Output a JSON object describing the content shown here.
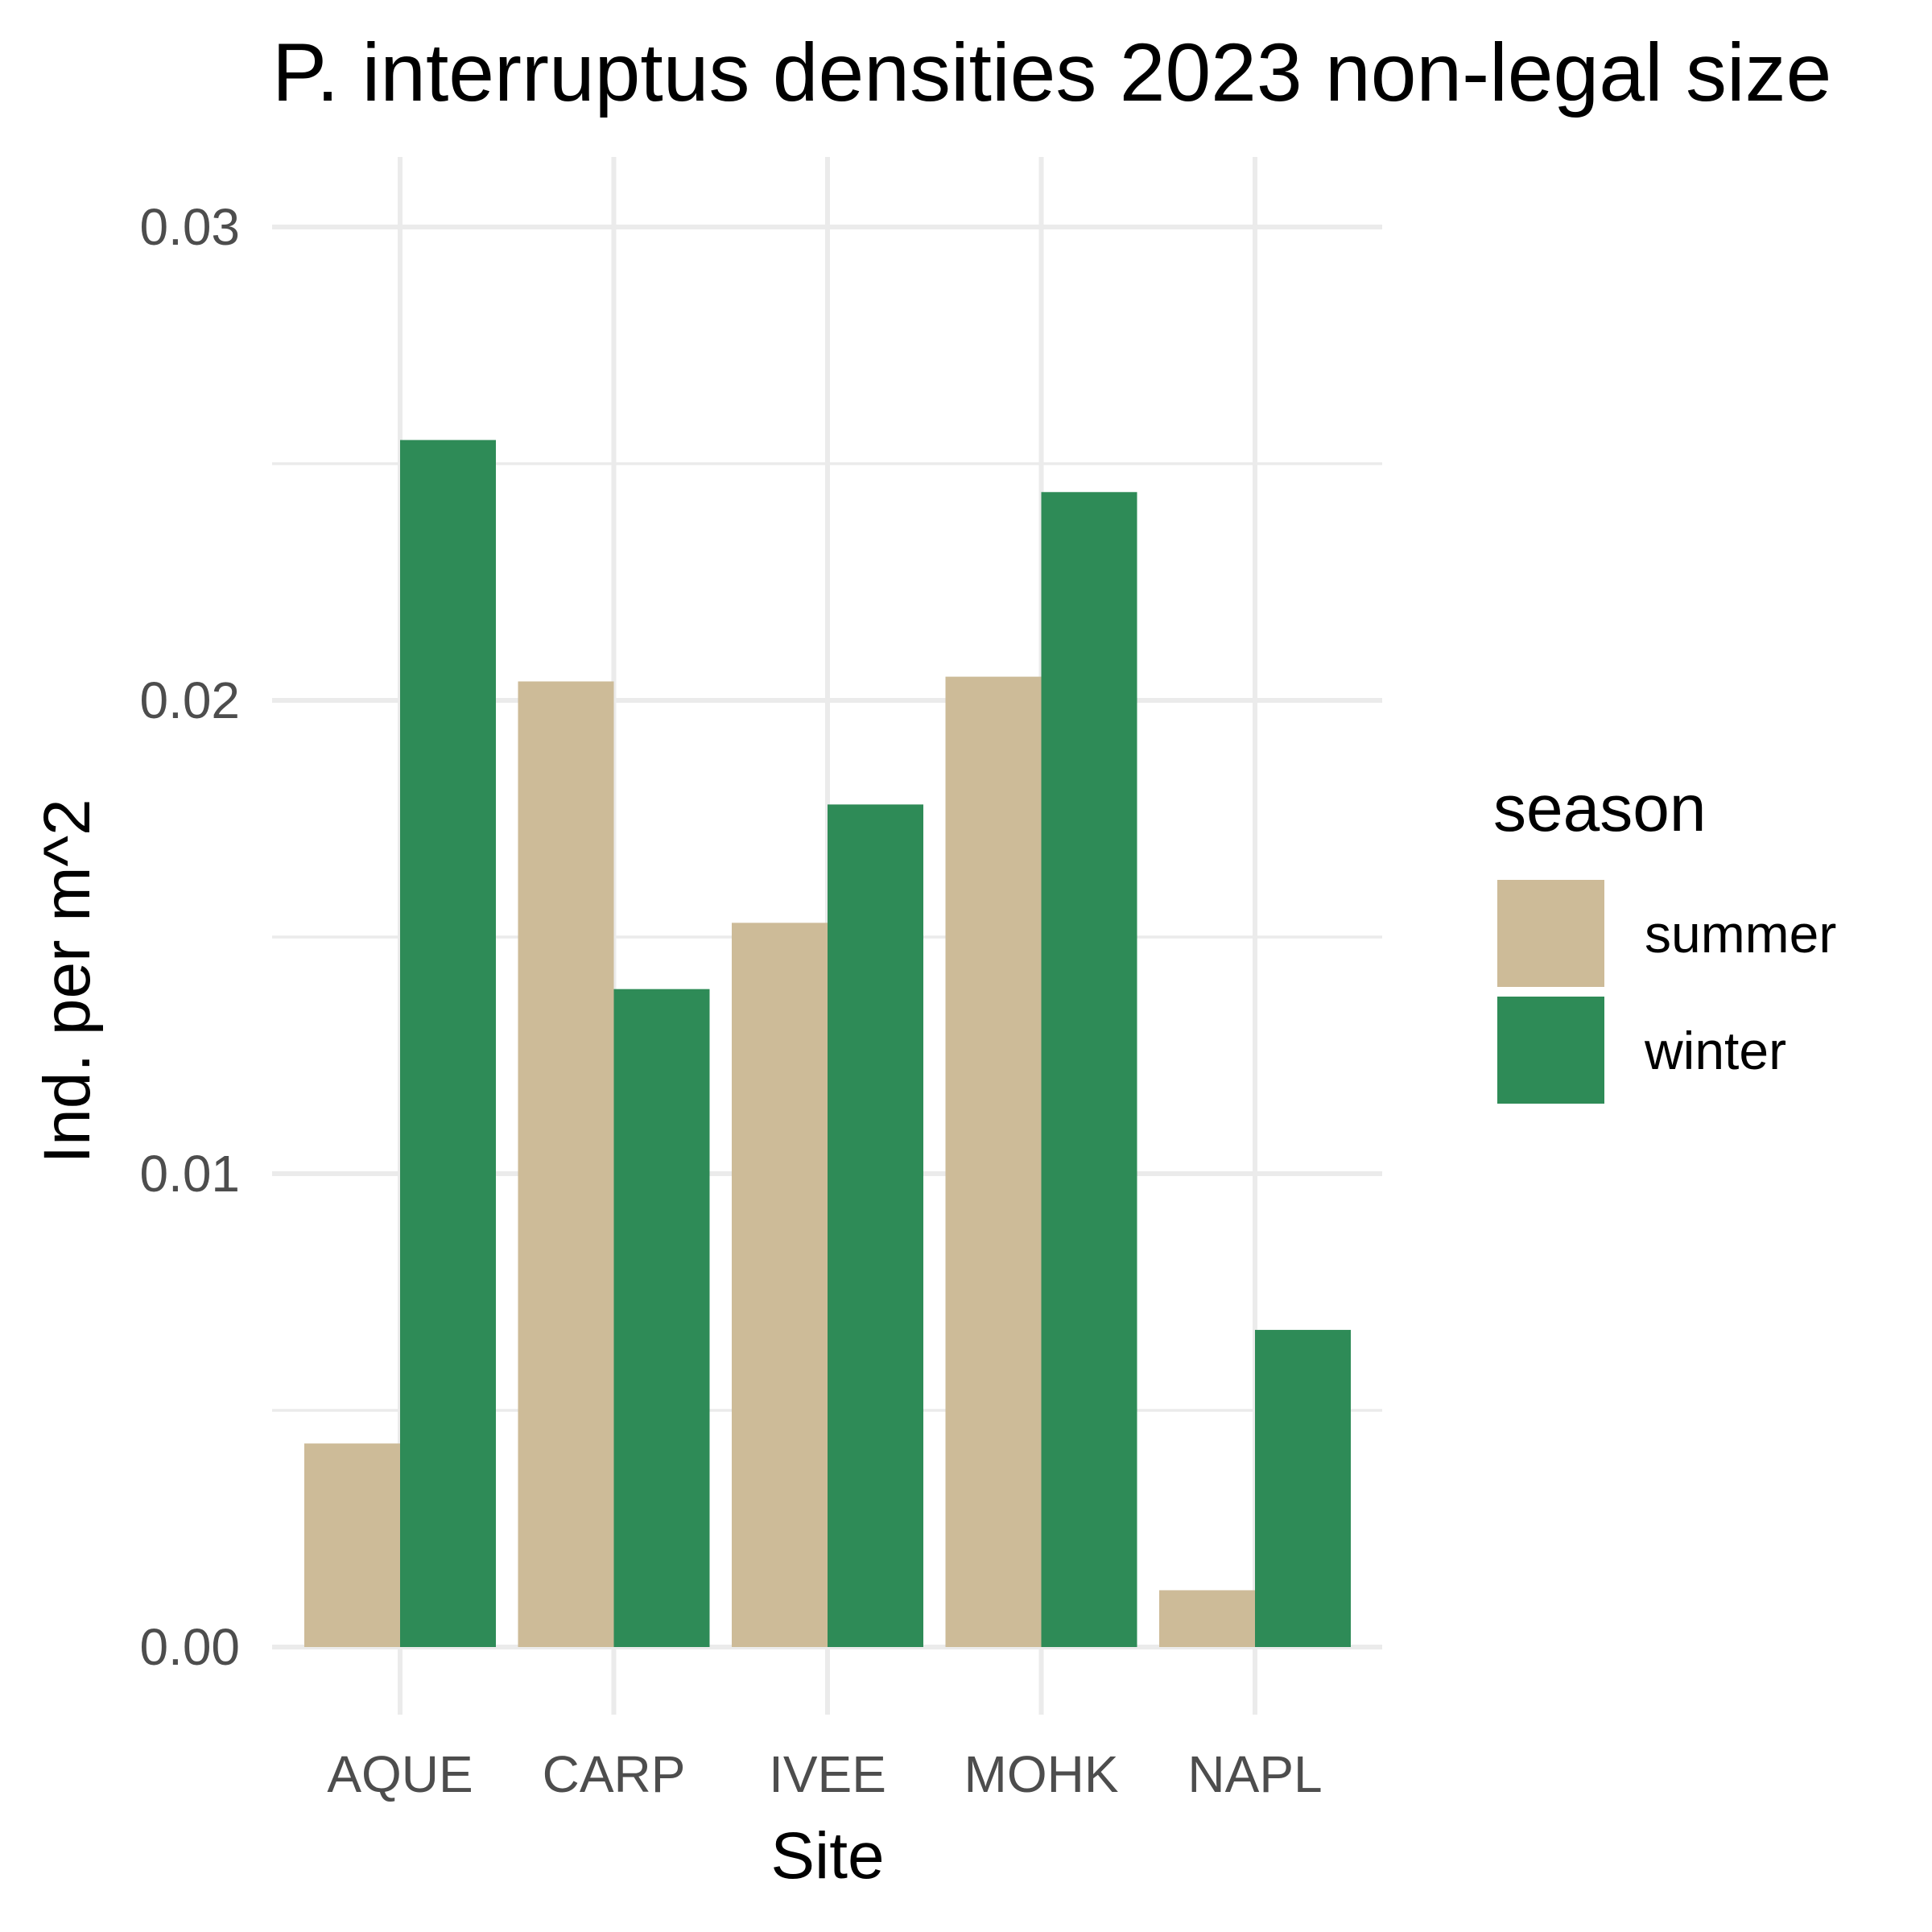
{
  "chart_data": {
    "type": "bar",
    "title": "P. interruptus densities 2023 non-legal size",
    "xlabel": "Site",
    "ylabel": "Ind. per m^2",
    "categories": [
      "AQUE",
      "CARP",
      "IVEE",
      "MOHK",
      "NAPL"
    ],
    "series": [
      {
        "name": "summer",
        "color": "#CDBB98",
        "values": [
          0.0043,
          0.0204,
          0.0153,
          0.0205,
          0.0012
        ]
      },
      {
        "name": "winter",
        "color": "#2E8B57",
        "values": [
          0.0255,
          0.0139,
          0.0178,
          0.0244,
          0.0067
        ]
      }
    ],
    "ylim": [
      0,
      0.03
    ],
    "yticks": [
      "0.00",
      "0.01",
      "0.02",
      "0.03"
    ],
    "ytick_values": [
      0,
      0.01,
      0.02,
      0.03
    ],
    "grid": true,
    "legend": {
      "title": "season",
      "position": "right"
    }
  }
}
